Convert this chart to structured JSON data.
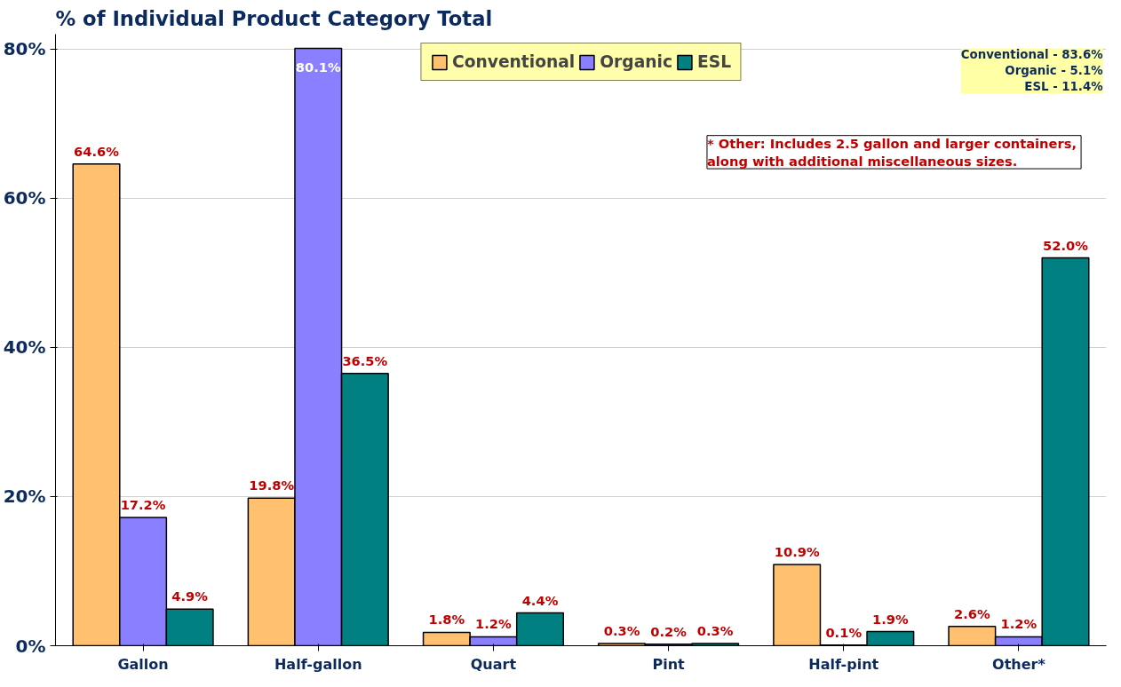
{
  "chart_data": {
    "type": "bar",
    "title": "% of Individual Product Category Total",
    "categories": [
      "Gallon",
      "Half-gallon",
      "Quart",
      "Pint",
      "Half-pint",
      "Other*"
    ],
    "series": [
      {
        "name": "Conventional",
        "color": "#ffc06f",
        "values": [
          64.6,
          19.8,
          1.8,
          0.3,
          10.9,
          2.6
        ],
        "value_labels": [
          "64.6%",
          "19.8%",
          "1.8%",
          "0.3%",
          "10.9%",
          "2.6%"
        ]
      },
      {
        "name": "Organic",
        "color": "#8a80ff",
        "values": [
          17.2,
          80.1,
          1.2,
          0.2,
          0.1,
          1.2
        ],
        "value_labels": [
          "17.2%",
          "80.1%",
          "1.2%",
          "0.2%",
          "0.1%",
          "1.2%"
        ]
      },
      {
        "name": "ESL",
        "color": "#008080",
        "values": [
          4.9,
          36.5,
          4.4,
          0.3,
          1.9,
          52.0
        ],
        "value_labels": [
          "4.9%",
          "36.5%",
          "4.4%",
          "0.3%",
          "1.9%",
          "52.0%"
        ]
      }
    ],
    "ylim": [
      0,
      82
    ],
    "yticks": [
      {
        "value": 0,
        "label": "0%"
      },
      {
        "value": 20,
        "label": "20%"
      },
      {
        "value": 40,
        "label": "40%"
      },
      {
        "value": 60,
        "label": "60%"
      },
      {
        "value": 80,
        "label": "80%"
      }
    ],
    "grid": "y",
    "legend": "top",
    "annotations": [
      "* Other: Includes 2.5 gallon and larger containers, along with additional miscellaneous sizes.",
      "Conventional - 83.6%",
      "Organic - 5.1%",
      "ESL - 11.4%"
    ]
  }
}
